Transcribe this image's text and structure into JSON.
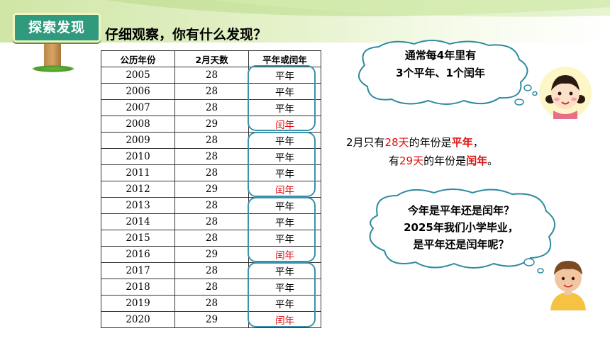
{
  "section_badge": "探索发现",
  "heading": "仔细观察，你有什么发现？",
  "table": {
    "headers": [
      "公历年份",
      "2月天数",
      "平年或闰年"
    ],
    "rows": [
      [
        "2005",
        "28",
        "平年"
      ],
      [
        "2006",
        "28",
        "平年"
      ],
      [
        "2007",
        "28",
        "平年"
      ],
      [
        "2008",
        "29",
        "闰年"
      ],
      [
        "2009",
        "28",
        "平年"
      ],
      [
        "2010",
        "28",
        "平年"
      ],
      [
        "2011",
        "28",
        "平年"
      ],
      [
        "2012",
        "29",
        "闰年"
      ],
      [
        "2013",
        "28",
        "平年"
      ],
      [
        "2014",
        "28",
        "平年"
      ],
      [
        "2015",
        "28",
        "平年"
      ],
      [
        "2016",
        "29",
        "闰年"
      ],
      [
        "2017",
        "28",
        "平年"
      ],
      [
        "2018",
        "28",
        "平年"
      ],
      [
        "2019",
        "28",
        "平年"
      ],
      [
        "2020",
        "29",
        "闰年"
      ]
    ]
  },
  "bubble_top": {
    "line1": "通常每4年里有",
    "line2": "3个平年、1个闰年"
  },
  "rule": {
    "l1_a": "2月只有",
    "l1_days": "28天",
    "l1_b": "的年份是",
    "l1_type": "平年",
    "l1_end": "，",
    "l2_a": "有",
    "l2_days": "29天",
    "l2_b": "的年份是",
    "l2_type": "闰年",
    "l2_end": "。"
  },
  "bubble_bottom": {
    "line1": "今年是平年还是闰年？",
    "line2": "2025年我们小学毕业，",
    "line3": "是平年还是闰年呢？"
  },
  "colors": {
    "leap": "#e01010",
    "ring": "#3a92a8",
    "badge": "#2f9a7e"
  }
}
